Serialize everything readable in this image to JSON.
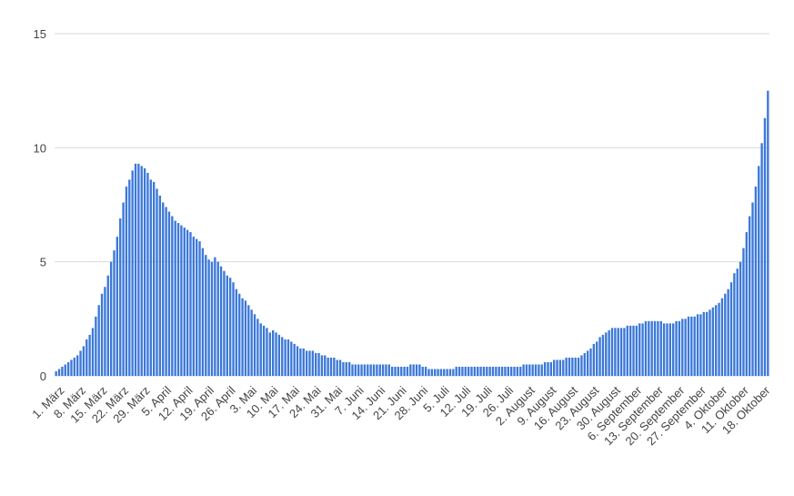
{
  "chart_data": {
    "type": "bar",
    "color": "#3b78d8",
    "grid": true,
    "ylim": [
      0,
      15
    ],
    "yticks": [
      0,
      5,
      10,
      15
    ],
    "categories": [
      "1. März",
      null,
      null,
      null,
      null,
      null,
      null,
      "8. März",
      null,
      null,
      null,
      null,
      null,
      null,
      "15. März",
      null,
      null,
      null,
      null,
      null,
      null,
      "22. März",
      null,
      null,
      null,
      null,
      null,
      null,
      "29. März",
      null,
      null,
      null,
      null,
      null,
      null,
      "5. April",
      null,
      null,
      null,
      null,
      null,
      null,
      "12. April",
      null,
      null,
      null,
      null,
      null,
      null,
      "19. April",
      null,
      null,
      null,
      null,
      null,
      null,
      "26. April",
      null,
      null,
      null,
      null,
      null,
      null,
      "3. Mai",
      null,
      null,
      null,
      null,
      null,
      null,
      "10. Mai",
      null,
      null,
      null,
      null,
      null,
      null,
      "17. Mai",
      null,
      null,
      null,
      null,
      null,
      null,
      "24. Mai",
      null,
      null,
      null,
      null,
      null,
      null,
      "31. Mai",
      null,
      null,
      null,
      null,
      null,
      null,
      "7. Juni",
      null,
      null,
      null,
      null,
      null,
      null,
      "14. Juni",
      null,
      null,
      null,
      null,
      null,
      null,
      "21. Juni",
      null,
      null,
      null,
      null,
      null,
      null,
      "28. Juni",
      null,
      null,
      null,
      null,
      null,
      null,
      "5. Juli",
      null,
      null,
      null,
      null,
      null,
      null,
      "12. Juli",
      null,
      null,
      null,
      null,
      null,
      null,
      "19. Juli",
      null,
      null,
      null,
      null,
      null,
      null,
      "26. Juli",
      null,
      null,
      null,
      null,
      null,
      null,
      "2. August",
      null,
      null,
      null,
      null,
      null,
      null,
      "9. August",
      null,
      null,
      null,
      null,
      null,
      null,
      "16. August",
      null,
      null,
      null,
      null,
      null,
      null,
      "23. August",
      null,
      null,
      null,
      null,
      null,
      null,
      "30. August",
      null,
      null,
      null,
      null,
      null,
      null,
      "6. September",
      null,
      null,
      null,
      null,
      null,
      null,
      "13. September",
      null,
      null,
      null,
      null,
      null,
      null,
      "20. September",
      null,
      null,
      null,
      null,
      null,
      null,
      "27. September",
      null,
      null,
      null,
      null,
      null,
      null,
      "4. Oktober",
      null,
      null,
      null,
      null,
      null,
      null,
      "11. Oktober",
      null,
      null,
      null,
      null,
      null,
      null,
      "18. Oktober",
      null,
      null
    ],
    "values": [
      0.2,
      0.3,
      0.4,
      0.5,
      0.6,
      0.7,
      0.8,
      0.9,
      1.1,
      1.3,
      1.6,
      1.8,
      2.1,
      2.6,
      3.1,
      3.6,
      3.9,
      4.4,
      5.0,
      5.5,
      6.1,
      6.9,
      7.6,
      8.3,
      8.6,
      9.0,
      9.3,
      9.3,
      9.2,
      9.1,
      8.9,
      8.6,
      8.5,
      8.2,
      7.9,
      7.6,
      7.4,
      7.2,
      7.0,
      6.8,
      6.7,
      6.6,
      6.5,
      6.4,
      6.3,
      6.1,
      6.0,
      5.9,
      5.6,
      5.3,
      5.1,
      5.0,
      5.2,
      5.0,
      4.8,
      4.6,
      4.4,
      4.3,
      4.1,
      3.8,
      3.6,
      3.4,
      3.3,
      3.1,
      2.9,
      2.7,
      2.5,
      2.3,
      2.2,
      2.1,
      1.9,
      2.0,
      1.9,
      1.8,
      1.7,
      1.6,
      1.6,
      1.5,
      1.4,
      1.3,
      1.2,
      1.2,
      1.1,
      1.1,
      1.1,
      1.0,
      1.0,
      0.9,
      0.9,
      0.8,
      0.8,
      0.8,
      0.7,
      0.7,
      0.6,
      0.6,
      0.6,
      0.5,
      0.5,
      0.5,
      0.5,
      0.5,
      0.5,
      0.5,
      0.5,
      0.5,
      0.5,
      0.5,
      0.5,
      0.5,
      0.4,
      0.4,
      0.4,
      0.4,
      0.4,
      0.4,
      0.5,
      0.5,
      0.5,
      0.5,
      0.4,
      0.4,
      0.3,
      0.3,
      0.3,
      0.3,
      0.3,
      0.3,
      0.3,
      0.3,
      0.3,
      0.4,
      0.4,
      0.4,
      0.4,
      0.4,
      0.4,
      0.4,
      0.4,
      0.4,
      0.4,
      0.4,
      0.4,
      0.4,
      0.4,
      0.4,
      0.4,
      0.4,
      0.4,
      0.4,
      0.4,
      0.4,
      0.4,
      0.5,
      0.5,
      0.5,
      0.5,
      0.5,
      0.5,
      0.5,
      0.6,
      0.6,
      0.6,
      0.7,
      0.7,
      0.7,
      0.7,
      0.8,
      0.8,
      0.8,
      0.8,
      0.8,
      0.9,
      1.0,
      1.1,
      1.2,
      1.4,
      1.5,
      1.7,
      1.8,
      1.9,
      2.0,
      2.1,
      2.1,
      2.1,
      2.1,
      2.1,
      2.2,
      2.2,
      2.2,
      2.2,
      2.3,
      2.3,
      2.4,
      2.4,
      2.4,
      2.4,
      2.4,
      2.4,
      2.3,
      2.3,
      2.3,
      2.3,
      2.4,
      2.4,
      2.5,
      2.5,
      2.6,
      2.6,
      2.6,
      2.7,
      2.7,
      2.8,
      2.8,
      2.9,
      3.0,
      3.1,
      3.2,
      3.4,
      3.6,
      3.8,
      4.1,
      4.5,
      4.7,
      5.0,
      5.6,
      6.3,
      7.0,
      7.6,
      8.3,
      9.2,
      10.2,
      11.3,
      12.5
    ]
  }
}
